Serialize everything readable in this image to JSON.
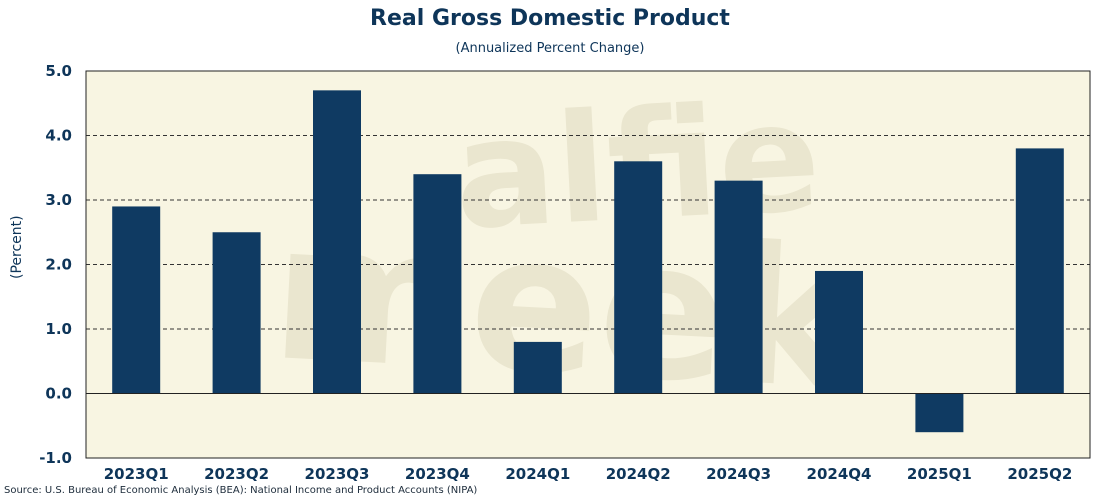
{
  "chart_data": {
    "type": "bar",
    "title": "Real Gross Domestic Product",
    "subtitle": "(Annualized Percent Change)",
    "ylabel": "(Percent)",
    "xlabel": "",
    "categories": [
      "2023Q1",
      "2023Q2",
      "2023Q3",
      "2023Q4",
      "2024Q1",
      "2024Q2",
      "2024Q3",
      "2024Q4",
      "2025Q1",
      "2025Q2"
    ],
    "values": [
      2.9,
      2.5,
      4.7,
      3.4,
      0.8,
      3.6,
      3.3,
      1.9,
      -0.6,
      3.8
    ],
    "ylim": [
      -1.0,
      5.0
    ],
    "yticks": [
      "-1.0",
      "0.0",
      "1.0",
      "2.0",
      "3.0",
      "4.0",
      "5.0"
    ],
    "grid": true,
    "legend": "none",
    "source": "Source: U.S. Bureau of Economic Analysis (BEA): National Income and Product Accounts (NIPA)",
    "colors": {
      "bar": "#0f3a62",
      "plot_bg": "#f8f5e2",
      "text": "#0e3559",
      "grid": "#333333"
    }
  },
  "watermark": "alfie meek"
}
